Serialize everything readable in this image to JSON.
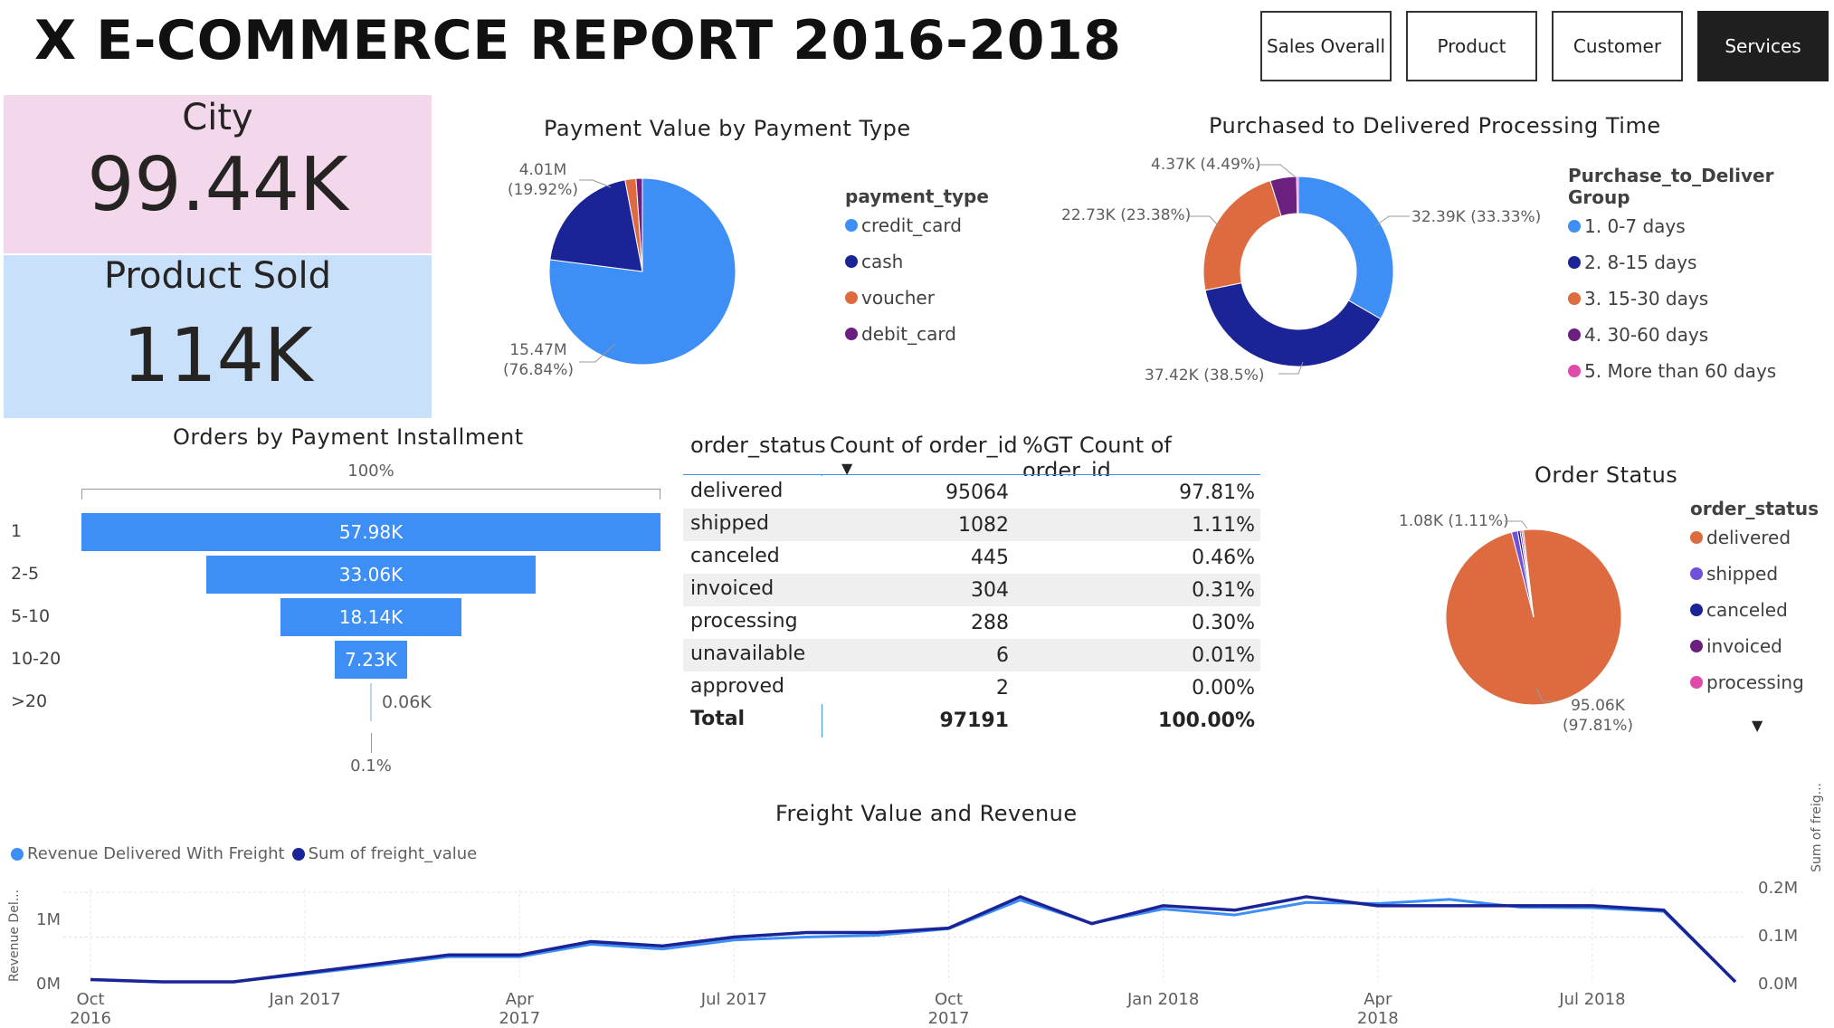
{
  "title": "X E-COMMERCE REPORT 2016-2018",
  "nav": [
    "Sales Overall",
    "Product",
    "Customer",
    "Services"
  ],
  "cards": {
    "city_label": "City",
    "city_value": "99.44K",
    "product_label": "Product Sold",
    "product_value": "114K"
  },
  "payment": {
    "title": "Payment Value by Payment Type",
    "legend_title": "payment_type",
    "legend": [
      "credit_card",
      "cash",
      "voucher",
      "debit_card"
    ],
    "label_big_1": "15.47M",
    "label_big_2": "(76.84%)",
    "label_small_1": "4.01M",
    "label_small_2": "(19.92%)"
  },
  "processing": {
    "title": "Purchased to Delivered Processing Time",
    "legend_title": "Purchase_to_Deliver Group",
    "legend": [
      "1. 0-7 days",
      "2. 8-15 days",
      "3. 15-30 days",
      "4. 30-60 days",
      "5. More than 60 days"
    ],
    "labels": [
      "32.39K (33.33%)",
      "37.42K (38.5%)",
      "22.73K (23.38%)",
      "4.37K (4.49%)"
    ]
  },
  "installment": {
    "title": "Orders by Payment Installment",
    "top_label": "100%",
    "bottom_label": "0.1%"
  },
  "matrix": {
    "headers": [
      "order_status",
      "Count of order_id",
      "%GT Count of order_id"
    ],
    "rows": [
      [
        "delivered",
        "95064",
        "97.81%"
      ],
      [
        "shipped",
        "1082",
        "1.11%"
      ],
      [
        "canceled",
        "445",
        "0.46%"
      ],
      [
        "invoiced",
        "304",
        "0.31%"
      ],
      [
        "processing",
        "288",
        "0.30%"
      ],
      [
        "unavailable",
        "6",
        "0.01%"
      ],
      [
        "approved",
        "2",
        "0.00%"
      ]
    ],
    "total": [
      "Total",
      "97191",
      "100.00%"
    ]
  },
  "order_status": {
    "title": "Order Status",
    "legend_title": "order_status",
    "legend": [
      "delivered",
      "shipped",
      "canceled",
      "invoiced",
      "processing"
    ],
    "label_small": "1.08K (1.11%)",
    "label_big_1": "95.06K",
    "label_big_2": "(97.81%)"
  },
  "freight": {
    "title": "Freight Value and Revenue",
    "legend": [
      "Revenue Delivered With Freight",
      "Sum of freight_value"
    ],
    "y_left_title": "Revenue Del...",
    "y_right_title": "Sum of freig...",
    "y_left_ticks": [
      "0M",
      "1M"
    ],
    "y_right_ticks": [
      "0.0M",
      "0.1M",
      "0.2M"
    ],
    "x_ticks": [
      "Oct 2016",
      "Jan 2017",
      "Apr 2017",
      "Jul 2017",
      "Oct 2017",
      "Jan 2018",
      "Apr 2018",
      "Jul 2018"
    ]
  },
  "colors": {
    "blue": "#3d8ef5",
    "navy": "#1a2496",
    "orange": "#dd6b3f",
    "purple": "#6b1f7f",
    "pink": "#e04aa8",
    "violet": "#7050d8",
    "card_pink": "#f3d7ea",
    "card_blue": "#c9e0fb"
  },
  "chart_data": [
    {
      "type": "pie",
      "title": "Payment Value by Payment Type",
      "categories": [
        "credit_card",
        "cash",
        "voucher",
        "debit_card"
      ],
      "values": [
        15.47,
        4.01,
        0.38,
        0.22
      ],
      "unit": "M"
    },
    {
      "type": "pie",
      "title": "Purchased to Delivered Processing Time",
      "categories": [
        "1. 0-7 days",
        "2. 8-15 days",
        "3. 15-30 days",
        "4. 30-60 days",
        "5. More than 60 days"
      ],
      "values": [
        32.39,
        37.42,
        22.73,
        4.37,
        0.28
      ],
      "unit": "K"
    },
    {
      "type": "bar",
      "title": "Orders by Payment Installment",
      "categories": [
        "1",
        "2-5",
        "5-10",
        "10-20",
        ">20"
      ],
      "values": [
        57.98,
        33.06,
        18.14,
        7.23,
        0.06
      ],
      "value_labels": [
        "57.98K",
        "33.06K",
        "18.14K",
        "7.23K",
        "0.06K"
      ],
      "unit": "K"
    },
    {
      "type": "pie",
      "title": "Order Status",
      "categories": [
        "delivered",
        "shipped",
        "canceled",
        "invoiced",
        "processing"
      ],
      "values": [
        95064,
        1082,
        445,
        304,
        288
      ]
    },
    {
      "type": "line",
      "title": "Freight Value and Revenue",
      "x": [
        "Oct 2016",
        "Nov 2016",
        "Dec 2016",
        "Jan 2017",
        "Feb 2017",
        "Mar 2017",
        "Apr 2017",
        "May 2017",
        "Jun 2017",
        "Jul 2017",
        "Aug 2017",
        "Sep 2017",
        "Oct 2017",
        "Nov 2017",
        "Dec 2017",
        "Jan 2018",
        "Feb 2018",
        "Mar 2018",
        "Apr 2018",
        "May 2018",
        "Jun 2018",
        "Jul 2018",
        "Aug 2018",
        "Sep 2018"
      ],
      "series": [
        {
          "name": "Revenue Delivered With Freight",
          "axis": "left",
          "values": [
            0.04,
            0.0,
            0.0,
            0.13,
            0.27,
            0.42,
            0.42,
            0.63,
            0.55,
            0.7,
            0.75,
            0.78,
            0.89,
            1.37,
            0.98,
            1.22,
            1.12,
            1.33,
            1.31,
            1.38,
            1.25,
            1.24,
            1.18,
            0.0
          ]
        },
        {
          "name": "Sum of freight_value",
          "axis": "right",
          "values": [
            0.005,
            0.0,
            0.0,
            0.02,
            0.04,
            0.06,
            0.06,
            0.09,
            0.08,
            0.1,
            0.11,
            0.11,
            0.12,
            0.19,
            0.13,
            0.17,
            0.16,
            0.19,
            0.17,
            0.17,
            0.17,
            0.17,
            0.16,
            0.0
          ]
        }
      ],
      "ylim_left": [
        0,
        1.5
      ],
      "ylim_right": [
        0,
        0.2
      ]
    }
  ]
}
